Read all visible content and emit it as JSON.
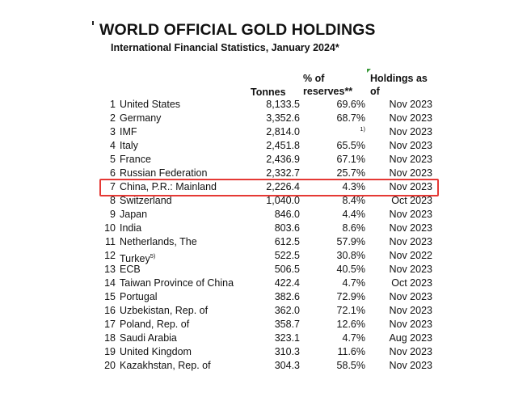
{
  "title": "WORLD OFFICIAL GOLD HOLDINGS",
  "subtitle": "International Financial Statistics, January 2024*",
  "headers": {
    "tonnes": "Tonnes",
    "reserves_line1": "% of",
    "reserves_line2": "reserves**",
    "holdings_line1": "Holdings as",
    "holdings_line2": "of"
  },
  "highlight_color": "#e53935",
  "highlighted_rank": 7,
  "rows": [
    {
      "rank": "1",
      "name": "United States",
      "tonnes": "8,133.5",
      "reserves": "69.6%",
      "date": "Nov 2023"
    },
    {
      "rank": "2",
      "name": "Germany",
      "tonnes": "3,352.6",
      "reserves": "68.7%",
      "date": "Nov 2023"
    },
    {
      "rank": "3",
      "name": "IMF",
      "tonnes": "2,814.0",
      "reserves": "1)",
      "date": "Nov 2023"
    },
    {
      "rank": "4",
      "name": "Italy",
      "tonnes": "2,451.8",
      "reserves": "65.5%",
      "date": "Nov 2023"
    },
    {
      "rank": "5",
      "name": "France",
      "tonnes": "2,436.9",
      "reserves": "67.1%",
      "date": "Nov 2023"
    },
    {
      "rank": "6",
      "name": "Russian Federation",
      "tonnes": "2,332.7",
      "reserves": "25.7%",
      "date": "Nov 2023"
    },
    {
      "rank": "7",
      "name": "China, P.R.: Mainland",
      "tonnes": "2,226.4",
      "reserves": "4.3%",
      "date": "Nov 2023"
    },
    {
      "rank": "8",
      "name": "Switzerland",
      "tonnes": "1,040.0",
      "reserves": "8.4%",
      "date": "Oct 2023"
    },
    {
      "rank": "9",
      "name": "Japan",
      "tonnes": "846.0",
      "reserves": "4.4%",
      "date": "Nov 2023"
    },
    {
      "rank": "10",
      "name": "India",
      "tonnes": "803.6",
      "reserves": "8.6%",
      "date": "Nov 2023"
    },
    {
      "rank": "11",
      "name": "Netherlands, The",
      "tonnes": "612.5",
      "reserves": "57.9%",
      "date": "Nov 2023"
    },
    {
      "rank": "12",
      "name": "Turkey",
      "name_sup": "5)",
      "tonnes": "522.5",
      "reserves": "30.8%",
      "date": "Nov 2022"
    },
    {
      "rank": "13",
      "name": "ECB",
      "tonnes": "506.5",
      "reserves": "40.5%",
      "date": "Nov 2023"
    },
    {
      "rank": "14",
      "name": "Taiwan Province of China",
      "tonnes": "422.4",
      "reserves": "4.7%",
      "date": "Oct 2023"
    },
    {
      "rank": "15",
      "name": "Portugal",
      "tonnes": "382.6",
      "reserves": "72.9%",
      "date": "Nov 2023"
    },
    {
      "rank": "16",
      "name": "Uzbekistan, Rep. of",
      "tonnes": "362.0",
      "reserves": "72.1%",
      "date": "Nov 2023"
    },
    {
      "rank": "17",
      "name": "Poland, Rep. of",
      "tonnes": "358.7",
      "reserves": "12.6%",
      "date": "Nov 2023"
    },
    {
      "rank": "18",
      "name": "Saudi Arabia",
      "tonnes": "323.1",
      "reserves": "4.7%",
      "date": "Aug 2023"
    },
    {
      "rank": "19",
      "name": "United Kingdom",
      "tonnes": "310.3",
      "reserves": "11.6%",
      "date": "Nov 2023"
    },
    {
      "rank": "20",
      "name": "Kazakhstan, Rep. of",
      "tonnes": "304.3",
      "reserves": "58.5%",
      "date": "Nov 2023"
    }
  ]
}
